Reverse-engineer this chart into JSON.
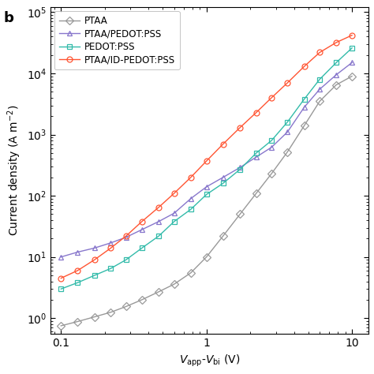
{
  "title": "",
  "xlabel": "$V_\\mathrm{app}$-$V_\\mathrm{bi}$ (V)",
  "ylabel": "Current density (A m$^{-2}$)",
  "xlim": [
    0.085,
    13
  ],
  "ylim": [
    0.55,
    120000.0
  ],
  "series": [
    {
      "label": "PTAA",
      "color": "#999999",
      "marker": "D",
      "x": [
        0.1,
        0.13,
        0.17,
        0.22,
        0.28,
        0.36,
        0.47,
        0.6,
        0.78,
        1.0,
        1.3,
        1.7,
        2.2,
        2.8,
        3.6,
        4.7,
        6.0,
        7.8,
        10.0
      ],
      "y": [
        0.75,
        0.88,
        1.05,
        1.25,
        1.55,
        2.0,
        2.7,
        3.6,
        5.5,
        10.0,
        22,
        50,
        110,
        230,
        520,
        1400,
        3500,
        6500,
        9000
      ]
    },
    {
      "label": "PTAA/PEDOT:PSS",
      "color": "#8877CC",
      "marker": "^",
      "x": [
        0.1,
        0.13,
        0.17,
        0.22,
        0.28,
        0.36,
        0.47,
        0.6,
        0.78,
        1.0,
        1.3,
        1.7,
        2.2,
        2.8,
        3.6,
        4.7,
        6.0,
        7.8,
        10.0
      ],
      "y": [
        10.0,
        12,
        14,
        17,
        21,
        28,
        38,
        52,
        90,
        140,
        200,
        290,
        430,
        620,
        1100,
        2800,
        5500,
        9500,
        15000
      ]
    },
    {
      "label": "PEDOT:PSS",
      "color": "#33BBAA",
      "marker": "s",
      "x": [
        0.1,
        0.13,
        0.17,
        0.22,
        0.28,
        0.36,
        0.47,
        0.6,
        0.78,
        1.0,
        1.3,
        1.7,
        2.2,
        2.8,
        3.6,
        4.7,
        6.0,
        7.8,
        10.0
      ],
      "y": [
        3.0,
        3.8,
        5.0,
        6.5,
        9.0,
        14,
        22,
        38,
        60,
        105,
        160,
        270,
        500,
        800,
        1600,
        3800,
        8000,
        15000,
        26000
      ]
    },
    {
      "label": "PTAA/ID-PEDOT:PSS",
      "color": "#FF5533",
      "marker": "o",
      "x": [
        0.1,
        0.13,
        0.17,
        0.22,
        0.28,
        0.36,
        0.47,
        0.6,
        0.78,
        1.0,
        1.3,
        1.7,
        2.2,
        2.8,
        3.6,
        4.7,
        6.0,
        7.8,
        10.0
      ],
      "y": [
        4.5,
        6.0,
        9.0,
        14,
        22,
        38,
        65,
        110,
        200,
        370,
        700,
        1300,
        2300,
        4000,
        7000,
        13000,
        22000,
        32000,
        42000
      ]
    }
  ],
  "legend_loc": "upper left",
  "panel_label": "b",
  "background_color": "#ffffff",
  "markersize": 5,
  "linewidth": 1.0
}
